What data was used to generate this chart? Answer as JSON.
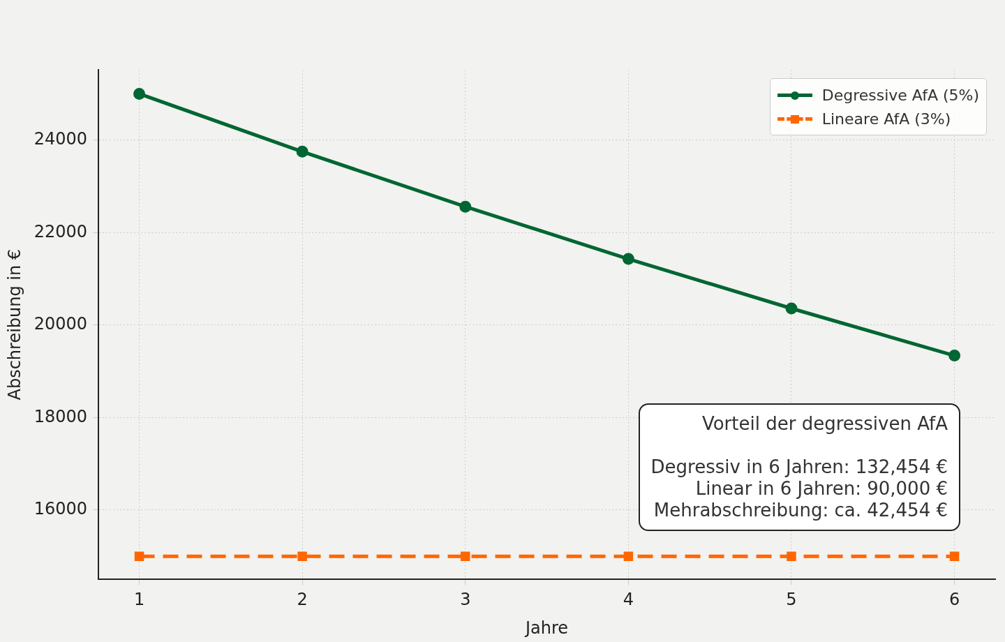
{
  "chart_data": {
    "type": "line",
    "xlabel": "Jahre",
    "ylabel": "Abschreibung in €",
    "x": [
      1,
      2,
      3,
      4,
      5,
      6
    ],
    "series": [
      {
        "name": "Degressive AfA (5%)",
        "color": "#006633",
        "values": [
          25000,
          23750,
          22560,
          21430,
          20360,
          19340
        ],
        "marker": "circle",
        "line_style": "solid"
      },
      {
        "name": "Lineare AfA (3%)",
        "color": "#ff6600",
        "values": [
          15000,
          15000,
          15000,
          15000,
          15000,
          15000
        ],
        "marker": "square",
        "line_style": "dashed"
      }
    ],
    "xlim": [
      0.75,
      6.25
    ],
    "xticks": [
      1,
      2,
      3,
      4,
      5,
      6
    ],
    "ylim": [
      14500,
      25520
    ],
    "yticks": [
      16000,
      18000,
      20000,
      22000,
      24000
    ],
    "grid": true,
    "legend": "top right",
    "annotations": [
      "Vorteil der degressiven AfA",
      "Degressiv in 6 Jahren: 132,454 €",
      "Linear in 6 Jahren: 90,000 €",
      "Mehrabschreibung: ca. 42,454 €"
    ]
  }
}
